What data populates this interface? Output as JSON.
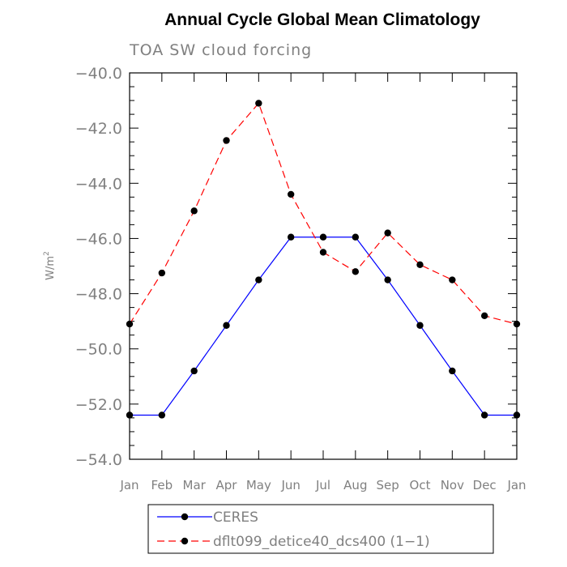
{
  "chart_data": {
    "type": "line",
    "title": "Annual Cycle Global Mean Climatology",
    "subtitle": "TOA SW cloud forcing",
    "ylabel": "W/m",
    "ylabel_superscript": "2",
    "xlabel": "",
    "categories": [
      "Jan",
      "Feb",
      "Mar",
      "Apr",
      "May",
      "Jun",
      "Jul",
      "Aug",
      "Sep",
      "Oct",
      "Nov",
      "Dec",
      "Jan"
    ],
    "ylim": [
      -54.0,
      -40.0
    ],
    "ytick_labels": [
      "−54.0",
      "−52.0",
      "−50.0",
      "−48.0",
      "−46.0",
      "−44.0",
      "−42.0",
      "−40.0"
    ],
    "ytick_values": [
      -54.0,
      -52.0,
      -50.0,
      -48.0,
      -46.0,
      -44.0,
      -42.0,
      -40.0
    ],
    "series": [
      {
        "name": "CERES",
        "color": "#0000ff",
        "dash": "solid",
        "values": [
          -52.4,
          -52.4,
          -50.8,
          -49.15,
          -47.5,
          -45.95,
          -45.95,
          -45.95,
          -47.5,
          -49.15,
          -50.8,
          -52.4,
          -52.4
        ]
      },
      {
        "name": "dflt099_detice40_dcs400 (1−1)",
        "color": "#ff0000",
        "dash": "dashed",
        "values": [
          -49.1,
          -47.25,
          -45.0,
          -42.45,
          -41.1,
          -44.4,
          -46.5,
          -47.2,
          -45.8,
          -46.95,
          -47.5,
          -48.8,
          -49.1
        ]
      }
    ],
    "grid": false,
    "legend_position": "bottom"
  }
}
